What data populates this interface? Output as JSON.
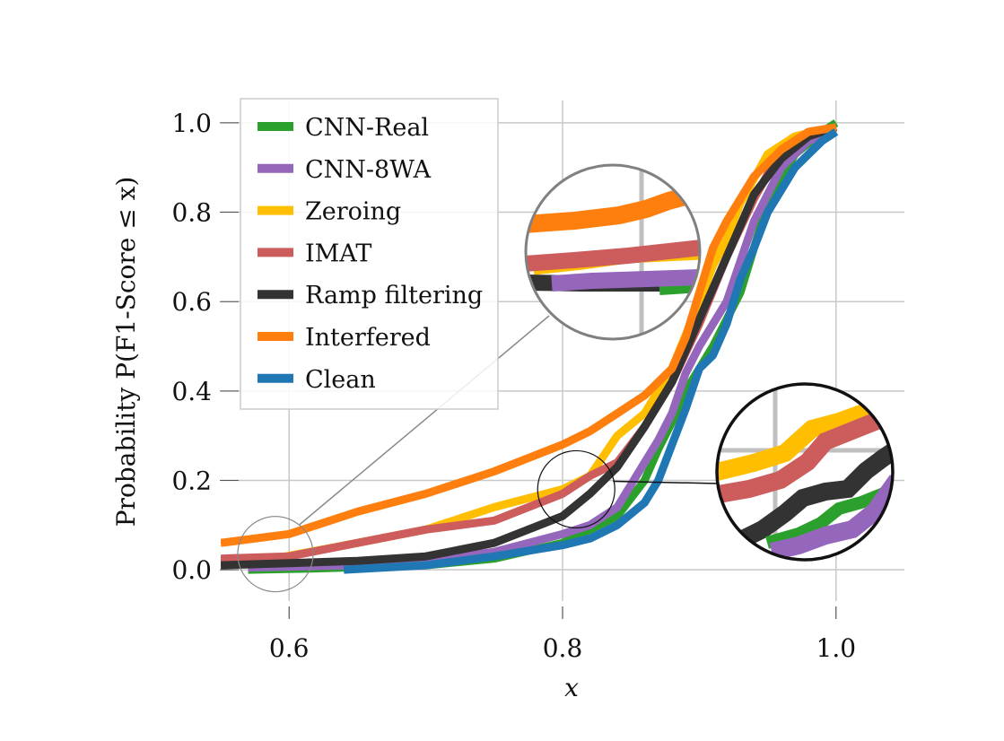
{
  "chart_data": {
    "type": "line",
    "subtype": "empirical CDF",
    "title": "",
    "xlabel": "x",
    "ylabel": "Probability P(F1-Score ≤ x)",
    "xlim": [
      0.55,
      1.05
    ],
    "ylim": [
      -0.07,
      1.05
    ],
    "xticks": [
      "0.6",
      "0.8",
      "1.0"
    ],
    "yticks": [
      "0.0",
      "0.2",
      "0.4",
      "0.6",
      "0.8",
      "1.0"
    ],
    "grid": true,
    "legend_position": "upper-left",
    "series": [
      {
        "name": "CNN-Real",
        "color": "#2ca02c",
        "points": [
          [
            0.57,
            0.0
          ],
          [
            0.62,
            0.003
          ],
          [
            0.7,
            0.01
          ],
          [
            0.75,
            0.025
          ],
          [
            0.8,
            0.06
          ],
          [
            0.82,
            0.09
          ],
          [
            0.84,
            0.12
          ],
          [
            0.86,
            0.2
          ],
          [
            0.87,
            0.27
          ],
          [
            0.88,
            0.33
          ],
          [
            0.89,
            0.4
          ],
          [
            0.91,
            0.5
          ],
          [
            0.93,
            0.62
          ],
          [
            0.95,
            0.82
          ],
          [
            0.97,
            0.93
          ],
          [
            0.99,
            0.98
          ],
          [
            1.0,
            1.0
          ]
        ]
      },
      {
        "name": "CNN-8WA",
        "color": "#9467bd",
        "points": [
          [
            0.57,
            0.005
          ],
          [
            0.65,
            0.01
          ],
          [
            0.7,
            0.02
          ],
          [
            0.75,
            0.04
          ],
          [
            0.8,
            0.08
          ],
          [
            0.82,
            0.1
          ],
          [
            0.84,
            0.14
          ],
          [
            0.86,
            0.24
          ],
          [
            0.87,
            0.29
          ],
          [
            0.88,
            0.35
          ],
          [
            0.89,
            0.44
          ],
          [
            0.9,
            0.5
          ],
          [
            0.92,
            0.6
          ],
          [
            0.94,
            0.78
          ],
          [
            0.96,
            0.9
          ],
          [
            0.98,
            0.96
          ],
          [
            1.0,
            0.98
          ]
        ]
      },
      {
        "name": "Zeroing",
        "color": "#ffbf00",
        "points": [
          [
            0.58,
            0.02
          ],
          [
            0.65,
            0.06
          ],
          [
            0.7,
            0.09
          ],
          [
            0.75,
            0.14
          ],
          [
            0.8,
            0.18
          ],
          [
            0.82,
            0.21
          ],
          [
            0.84,
            0.3
          ],
          [
            0.86,
            0.35
          ],
          [
            0.88,
            0.45
          ],
          [
            0.9,
            0.6
          ],
          [
            0.91,
            0.68
          ],
          [
            0.92,
            0.74
          ],
          [
            0.93,
            0.82
          ],
          [
            0.95,
            0.93
          ],
          [
            0.97,
            0.97
          ],
          [
            1.0,
            0.99
          ]
        ]
      },
      {
        "name": "IMAT",
        "color": "#cd5c5c",
        "points": [
          [
            0.55,
            0.025
          ],
          [
            0.6,
            0.03
          ],
          [
            0.65,
            0.06
          ],
          [
            0.7,
            0.09
          ],
          [
            0.75,
            0.11
          ],
          [
            0.8,
            0.17
          ],
          [
            0.82,
            0.21
          ],
          [
            0.84,
            0.24
          ],
          [
            0.86,
            0.32
          ],
          [
            0.88,
            0.42
          ],
          [
            0.9,
            0.55
          ],
          [
            0.92,
            0.7
          ],
          [
            0.94,
            0.83
          ],
          [
            0.96,
            0.94
          ],
          [
            0.98,
            0.98
          ],
          [
            1.0,
            0.99
          ]
        ]
      },
      {
        "name": "Ramp filtering",
        "color": "#333333",
        "points": [
          [
            0.55,
            0.01
          ],
          [
            0.6,
            0.015
          ],
          [
            0.65,
            0.02
          ],
          [
            0.7,
            0.03
          ],
          [
            0.75,
            0.06
          ],
          [
            0.8,
            0.12
          ],
          [
            0.82,
            0.17
          ],
          [
            0.84,
            0.23
          ],
          [
            0.86,
            0.32
          ],
          [
            0.88,
            0.42
          ],
          [
            0.9,
            0.56
          ],
          [
            0.92,
            0.7
          ],
          [
            0.94,
            0.84
          ],
          [
            0.96,
            0.92
          ],
          [
            0.98,
            0.97
          ],
          [
            1.0,
            0.99
          ]
        ]
      },
      {
        "name": "Interfered",
        "color": "#ff7f0e",
        "points": [
          [
            0.55,
            0.06
          ],
          [
            0.6,
            0.08
          ],
          [
            0.65,
            0.13
          ],
          [
            0.7,
            0.17
          ],
          [
            0.75,
            0.22
          ],
          [
            0.8,
            0.28
          ],
          [
            0.82,
            0.31
          ],
          [
            0.84,
            0.35
          ],
          [
            0.86,
            0.39
          ],
          [
            0.88,
            0.45
          ],
          [
            0.89,
            0.52
          ],
          [
            0.9,
            0.62
          ],
          [
            0.91,
            0.72
          ],
          [
            0.92,
            0.78
          ],
          [
            0.94,
            0.88
          ],
          [
            0.96,
            0.94
          ],
          [
            0.98,
            0.98
          ],
          [
            1.0,
            0.99
          ]
        ]
      },
      {
        "name": "Clean",
        "color": "#1f77b4",
        "points": [
          [
            0.64,
            0.0
          ],
          [
            0.7,
            0.01
          ],
          [
            0.75,
            0.03
          ],
          [
            0.8,
            0.055
          ],
          [
            0.82,
            0.07
          ],
          [
            0.84,
            0.1
          ],
          [
            0.86,
            0.15
          ],
          [
            0.87,
            0.2
          ],
          [
            0.89,
            0.36
          ],
          [
            0.9,
            0.45
          ],
          [
            0.91,
            0.48
          ],
          [
            0.92,
            0.55
          ],
          [
            0.93,
            0.65
          ],
          [
            0.94,
            0.72
          ],
          [
            0.95,
            0.8
          ],
          [
            0.97,
            0.9
          ],
          [
            0.99,
            0.96
          ],
          [
            1.0,
            0.98
          ]
        ]
      }
    ],
    "insets": [
      {
        "type": "magnifier",
        "focus_x": 0.59,
        "focus_y": 0.035
      },
      {
        "type": "magnifier",
        "focus_x": 0.81,
        "focus_y": 0.18
      }
    ]
  }
}
